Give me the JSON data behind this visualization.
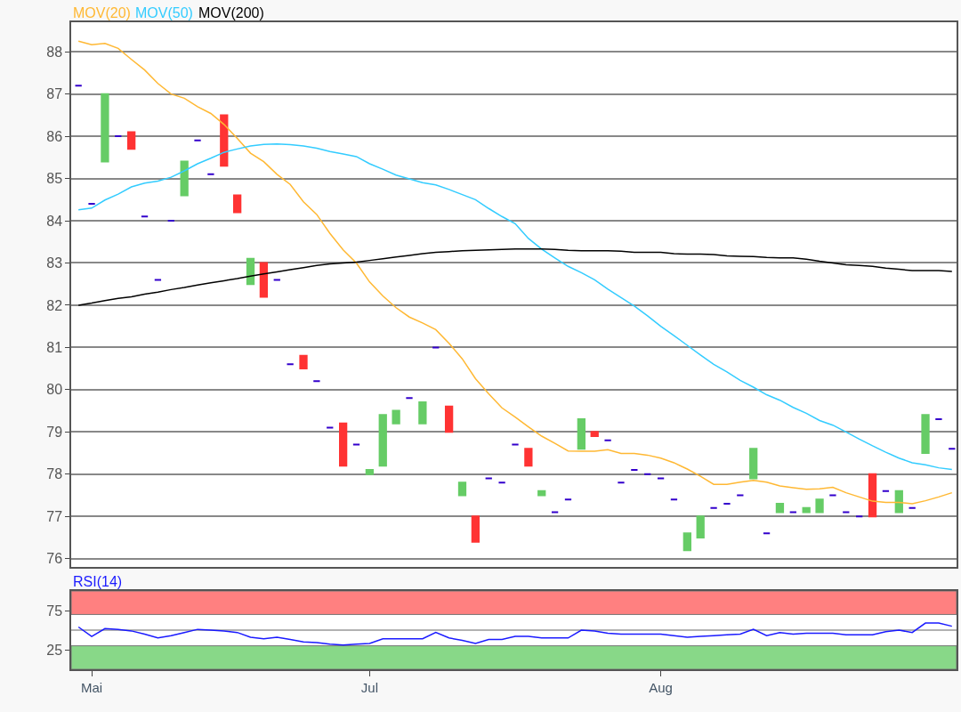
{
  "chart_data": [
    {
      "type": "candlestick",
      "categories": [
        null,
        null,
        null,
        null,
        null,
        null,
        null,
        null,
        null,
        null,
        null,
        null,
        null,
        null,
        null,
        null,
        null,
        null,
        null,
        null,
        null,
        null,
        null,
        null,
        null,
        null,
        null,
        null,
        null,
        null,
        null,
        null,
        null,
        null,
        null,
        null,
        null,
        null,
        null,
        null,
        null,
        null,
        null,
        null,
        null,
        null,
        null,
        null,
        null,
        null,
        null,
        null,
        null,
        null,
        null,
        null,
        null,
        null,
        null,
        null,
        null,
        null,
        null,
        null,
        null,
        null,
        null
      ],
      "ohlc": [
        [
          87.2,
          87.2,
          87.2,
          87.2
        ],
        [
          84.4,
          84.4,
          84.4,
          84.4
        ],
        [
          85.4,
          87.0,
          85.4,
          87.0
        ],
        [
          86.0,
          86.0,
          86.0,
          86.0
        ],
        [
          86.1,
          86.1,
          85.7,
          85.7
        ],
        [
          84.1,
          84.1,
          84.1,
          84.1
        ],
        [
          82.6,
          82.6,
          82.6,
          82.6
        ],
        [
          84.0,
          84.0,
          84.0,
          84.0
        ],
        [
          84.6,
          85.4,
          84.6,
          85.4
        ],
        [
          85.9,
          85.9,
          85.9,
          85.9
        ],
        [
          85.1,
          85.1,
          85.1,
          85.1
        ],
        [
          86.5,
          86.5,
          85.3,
          85.3
        ],
        [
          84.6,
          84.6,
          84.2,
          84.2
        ],
        [
          82.5,
          83.1,
          82.5,
          83.1
        ],
        [
          83.0,
          83.0,
          82.2,
          82.2
        ],
        [
          82.6,
          82.6,
          82.6,
          82.6
        ],
        [
          80.6,
          80.6,
          80.6,
          80.6
        ],
        [
          80.8,
          80.8,
          80.5,
          80.5
        ],
        [
          80.2,
          80.2,
          80.2,
          80.2
        ],
        [
          79.1,
          79.1,
          79.1,
          79.1
        ],
        [
          79.2,
          79.2,
          78.2,
          78.2
        ],
        [
          78.7,
          78.7,
          78.7,
          78.7
        ],
        [
          78.0,
          78.1,
          78.0,
          78.1
        ],
        [
          78.2,
          79.4,
          78.2,
          79.4
        ],
        [
          79.2,
          79.5,
          79.2,
          79.5
        ],
        [
          79.8,
          79.8,
          79.8,
          79.8
        ],
        [
          79.2,
          79.7,
          79.2,
          79.7
        ],
        [
          81.0,
          81.0,
          81.0,
          81.0
        ],
        [
          79.6,
          79.6,
          79.0,
          79.0
        ],
        [
          77.5,
          77.8,
          77.5,
          77.8
        ],
        [
          77.0,
          77.0,
          76.4,
          76.4
        ],
        [
          77.9,
          77.9,
          77.9,
          77.9
        ],
        [
          77.8,
          77.8,
          77.8,
          77.8
        ],
        [
          78.7,
          78.7,
          78.7,
          78.7
        ],
        [
          78.6,
          78.6,
          78.2,
          78.2
        ],
        [
          77.5,
          77.6,
          77.5,
          77.6
        ],
        [
          77.1,
          77.1,
          77.1,
          77.1
        ],
        [
          77.4,
          77.4,
          77.4,
          77.4
        ],
        [
          78.6,
          79.3,
          78.6,
          79.3
        ],
        [
          79.0,
          79.0,
          78.9,
          78.9
        ],
        [
          78.8,
          78.8,
          78.8,
          78.8
        ],
        [
          77.8,
          77.8,
          77.8,
          77.8
        ],
        [
          78.1,
          78.1,
          78.1,
          78.1
        ],
        [
          78.0,
          78.0,
          78.0,
          78.0
        ],
        [
          77.9,
          77.9,
          77.9,
          77.9
        ],
        [
          77.4,
          77.4,
          77.4,
          77.4
        ],
        [
          76.2,
          76.6,
          76.2,
          76.6
        ],
        [
          76.5,
          77.0,
          76.5,
          77.0
        ],
        [
          77.2,
          77.2,
          77.2,
          77.2
        ],
        [
          77.3,
          77.3,
          77.3,
          77.3
        ],
        [
          77.5,
          77.5,
          77.5,
          77.5
        ],
        [
          77.9,
          78.6,
          77.9,
          78.6
        ],
        [
          76.6,
          76.6,
          76.6,
          76.6
        ],
        [
          77.1,
          77.3,
          77.1,
          77.3
        ],
        [
          77.1,
          77.1,
          77.1,
          77.1
        ],
        [
          77.1,
          77.2,
          77.1,
          77.2
        ],
        [
          77.1,
          77.4,
          77.1,
          77.4
        ],
        [
          77.5,
          77.5,
          77.5,
          77.5
        ],
        [
          77.1,
          77.1,
          77.1,
          77.1
        ],
        [
          77.0,
          77.0,
          77.0,
          77.0
        ],
        [
          78.0,
          78.0,
          77.0,
          77.0
        ],
        [
          77.6,
          77.6,
          77.6,
          77.6
        ],
        [
          77.1,
          77.6,
          77.1,
          77.6
        ],
        [
          77.2,
          77.2,
          77.2,
          77.2
        ],
        [
          78.5,
          79.4,
          78.5,
          79.4
        ],
        [
          79.3,
          79.3,
          79.3,
          79.3
        ],
        [
          78.6,
          78.6,
          78.6,
          78.6
        ]
      ],
      "colors": [
        "#3300cc",
        "#3300cc",
        "#66cc66",
        "#3300cc",
        "#ff3333",
        "#3300cc",
        "#3300cc",
        "#3300cc",
        "#66cc66",
        "#3300cc",
        "#3300cc",
        "#ff3333",
        "#ff3333",
        "#66cc66",
        "#ff3333",
        "#3300cc",
        "#3300cc",
        "#ff3333",
        "#3300cc",
        "#3300cc",
        "#ff3333",
        "#3300cc",
        "#66cc66",
        "#66cc66",
        "#66cc66",
        "#3300cc",
        "#66cc66",
        "#3300cc",
        "#ff3333",
        "#66cc66",
        "#ff3333",
        "#3300cc",
        "#3300cc",
        "#3300cc",
        "#ff3333",
        "#66cc66",
        "#3300cc",
        "#3300cc",
        "#66cc66",
        "#ff3333",
        "#3300cc",
        "#3300cc",
        "#3300cc",
        "#3300cc",
        "#3300cc",
        "#3300cc",
        "#66cc66",
        "#66cc66",
        "#3300cc",
        "#3300cc",
        "#3300cc",
        "#66cc66",
        "#3300cc",
        "#66cc66",
        "#3300cc",
        "#66cc66",
        "#66cc66",
        "#3300cc",
        "#3300cc",
        "#3300cc",
        "#ff3333",
        "#3300cc",
        "#66cc66",
        "#3300cc",
        "#66cc66",
        "#3300cc",
        "#3300cc"
      ],
      "series": [
        {
          "type": "line",
          "name": "MOV(20)",
          "color": "#ffb833",
          "values": [
            88.25,
            88.17,
            88.2,
            88.08,
            87.82,
            87.57,
            87.25,
            87.0,
            86.9,
            86.7,
            86.54,
            86.28,
            85.95,
            85.6,
            85.4,
            85.1,
            84.86,
            84.45,
            84.15,
            83.7,
            83.31,
            83.0,
            82.55,
            82.22,
            81.94,
            81.72,
            81.58,
            81.42,
            81.1,
            80.73,
            80.26,
            79.9,
            79.57,
            79.35,
            79.12,
            78.9,
            78.73,
            78.55,
            78.54,
            78.54,
            78.58,
            78.49,
            78.49,
            78.45,
            78.38,
            78.27,
            78.12,
            77.95,
            77.76,
            77.76,
            77.81,
            77.85,
            77.81,
            77.72,
            77.68,
            77.64,
            77.65,
            77.69,
            77.56,
            77.46,
            77.36,
            77.33,
            77.33,
            77.3,
            77.37,
            77.46,
            77.56
          ]
        },
        {
          "type": "line",
          "name": "MOV(50)",
          "color": "#33ccff",
          "values": [
            84.26,
            84.3,
            84.49,
            84.63,
            84.8,
            84.89,
            84.94,
            85.03,
            85.18,
            85.35,
            85.48,
            85.62,
            85.7,
            85.77,
            85.81,
            85.82,
            85.8,
            85.77,
            85.72,
            85.64,
            85.58,
            85.52,
            85.35,
            85.22,
            85.08,
            84.99,
            84.9,
            84.85,
            84.74,
            84.62,
            84.5,
            84.29,
            84.1,
            83.93,
            83.58,
            83.33,
            83.12,
            82.92,
            82.77,
            82.6,
            82.38,
            82.18,
            81.98,
            81.75,
            81.5,
            81.28,
            81.05,
            80.82,
            80.6,
            80.42,
            80.22,
            80.06,
            79.88,
            79.75,
            79.58,
            79.44,
            79.27,
            79.16,
            79.0,
            78.83,
            78.67,
            78.52,
            78.38,
            78.27,
            78.22,
            78.15,
            78.11
          ]
        },
        {
          "type": "line",
          "name": "MOV(200)",
          "color": "#000000",
          "values": [
            82.0,
            82.05,
            82.11,
            82.16,
            82.2,
            82.26,
            82.31,
            82.37,
            82.42,
            82.48,
            82.53,
            82.58,
            82.63,
            82.69,
            82.74,
            82.79,
            82.84,
            82.89,
            82.94,
            82.98,
            83.0,
            83.02,
            83.06,
            83.1,
            83.14,
            83.18,
            83.22,
            83.25,
            83.27,
            83.29,
            83.3,
            83.31,
            83.32,
            83.33,
            83.33,
            83.33,
            83.32,
            83.3,
            83.29,
            83.29,
            83.29,
            83.28,
            83.25,
            83.25,
            83.25,
            83.22,
            83.21,
            83.21,
            83.2,
            83.17,
            83.16,
            83.15,
            83.13,
            83.12,
            83.12,
            83.09,
            83.04,
            83.0,
            82.96,
            82.94,
            82.92,
            82.88,
            82.85,
            82.82,
            82.82,
            82.82,
            82.8
          ]
        }
      ],
      "ylim": [
        75.8,
        88.7
      ],
      "yticks": [
        76,
        77,
        78,
        79,
        80,
        81,
        82,
        83,
        84,
        85,
        86,
        87,
        88
      ],
      "grid": "y",
      "tick_labels": "y"
    },
    {
      "type": "line",
      "categories": [
        null,
        "Mai",
        null,
        null,
        null,
        null,
        null,
        null,
        null,
        null,
        null,
        null,
        null,
        null,
        null,
        null,
        null,
        null,
        null,
        null,
        null,
        null,
        "Jul",
        null,
        null,
        null,
        null,
        null,
        null,
        null,
        null,
        null,
        null,
        null,
        null,
        null,
        null,
        null,
        null,
        null,
        null,
        null,
        null,
        null,
        "Aug",
        null,
        null,
        null,
        null,
        null,
        null,
        null,
        null,
        null,
        null,
        null,
        null,
        null,
        null,
        null,
        null,
        null,
        null,
        null,
        null,
        null,
        null
      ],
      "series": [
        {
          "name": "RSI(14)",
          "color": "#1a1aff",
          "values": [
            54,
            42,
            52,
            51,
            49,
            45,
            40,
            43,
            47,
            51,
            50,
            49,
            47,
            41,
            39,
            41,
            38,
            35,
            34,
            32,
            31,
            32,
            33,
            39,
            39,
            39,
            39,
            47,
            40,
            37,
            33,
            38,
            38,
            42,
            42,
            40,
            40,
            40,
            50,
            49,
            46,
            45,
            45,
            45,
            45,
            43,
            41,
            42,
            43,
            44,
            45,
            51,
            43,
            47,
            45,
            46,
            46,
            46,
            44,
            44,
            44,
            48,
            50,
            47,
            59,
            59,
            55
          ]
        }
      ],
      "ylim": [
        0,
        100
      ],
      "yticks": [
        25,
        75
      ],
      "bands": [
        {
          "axis": "y",
          "from": 70,
          "to": 100,
          "color": "#ff8080"
        },
        {
          "axis": "y",
          "from": 0,
          "to": 30,
          "color": "#88d888"
        }
      ],
      "ref_lines": [
        {
          "axis": "y",
          "value": 50,
          "color": "#999999"
        }
      ]
    }
  ]
}
